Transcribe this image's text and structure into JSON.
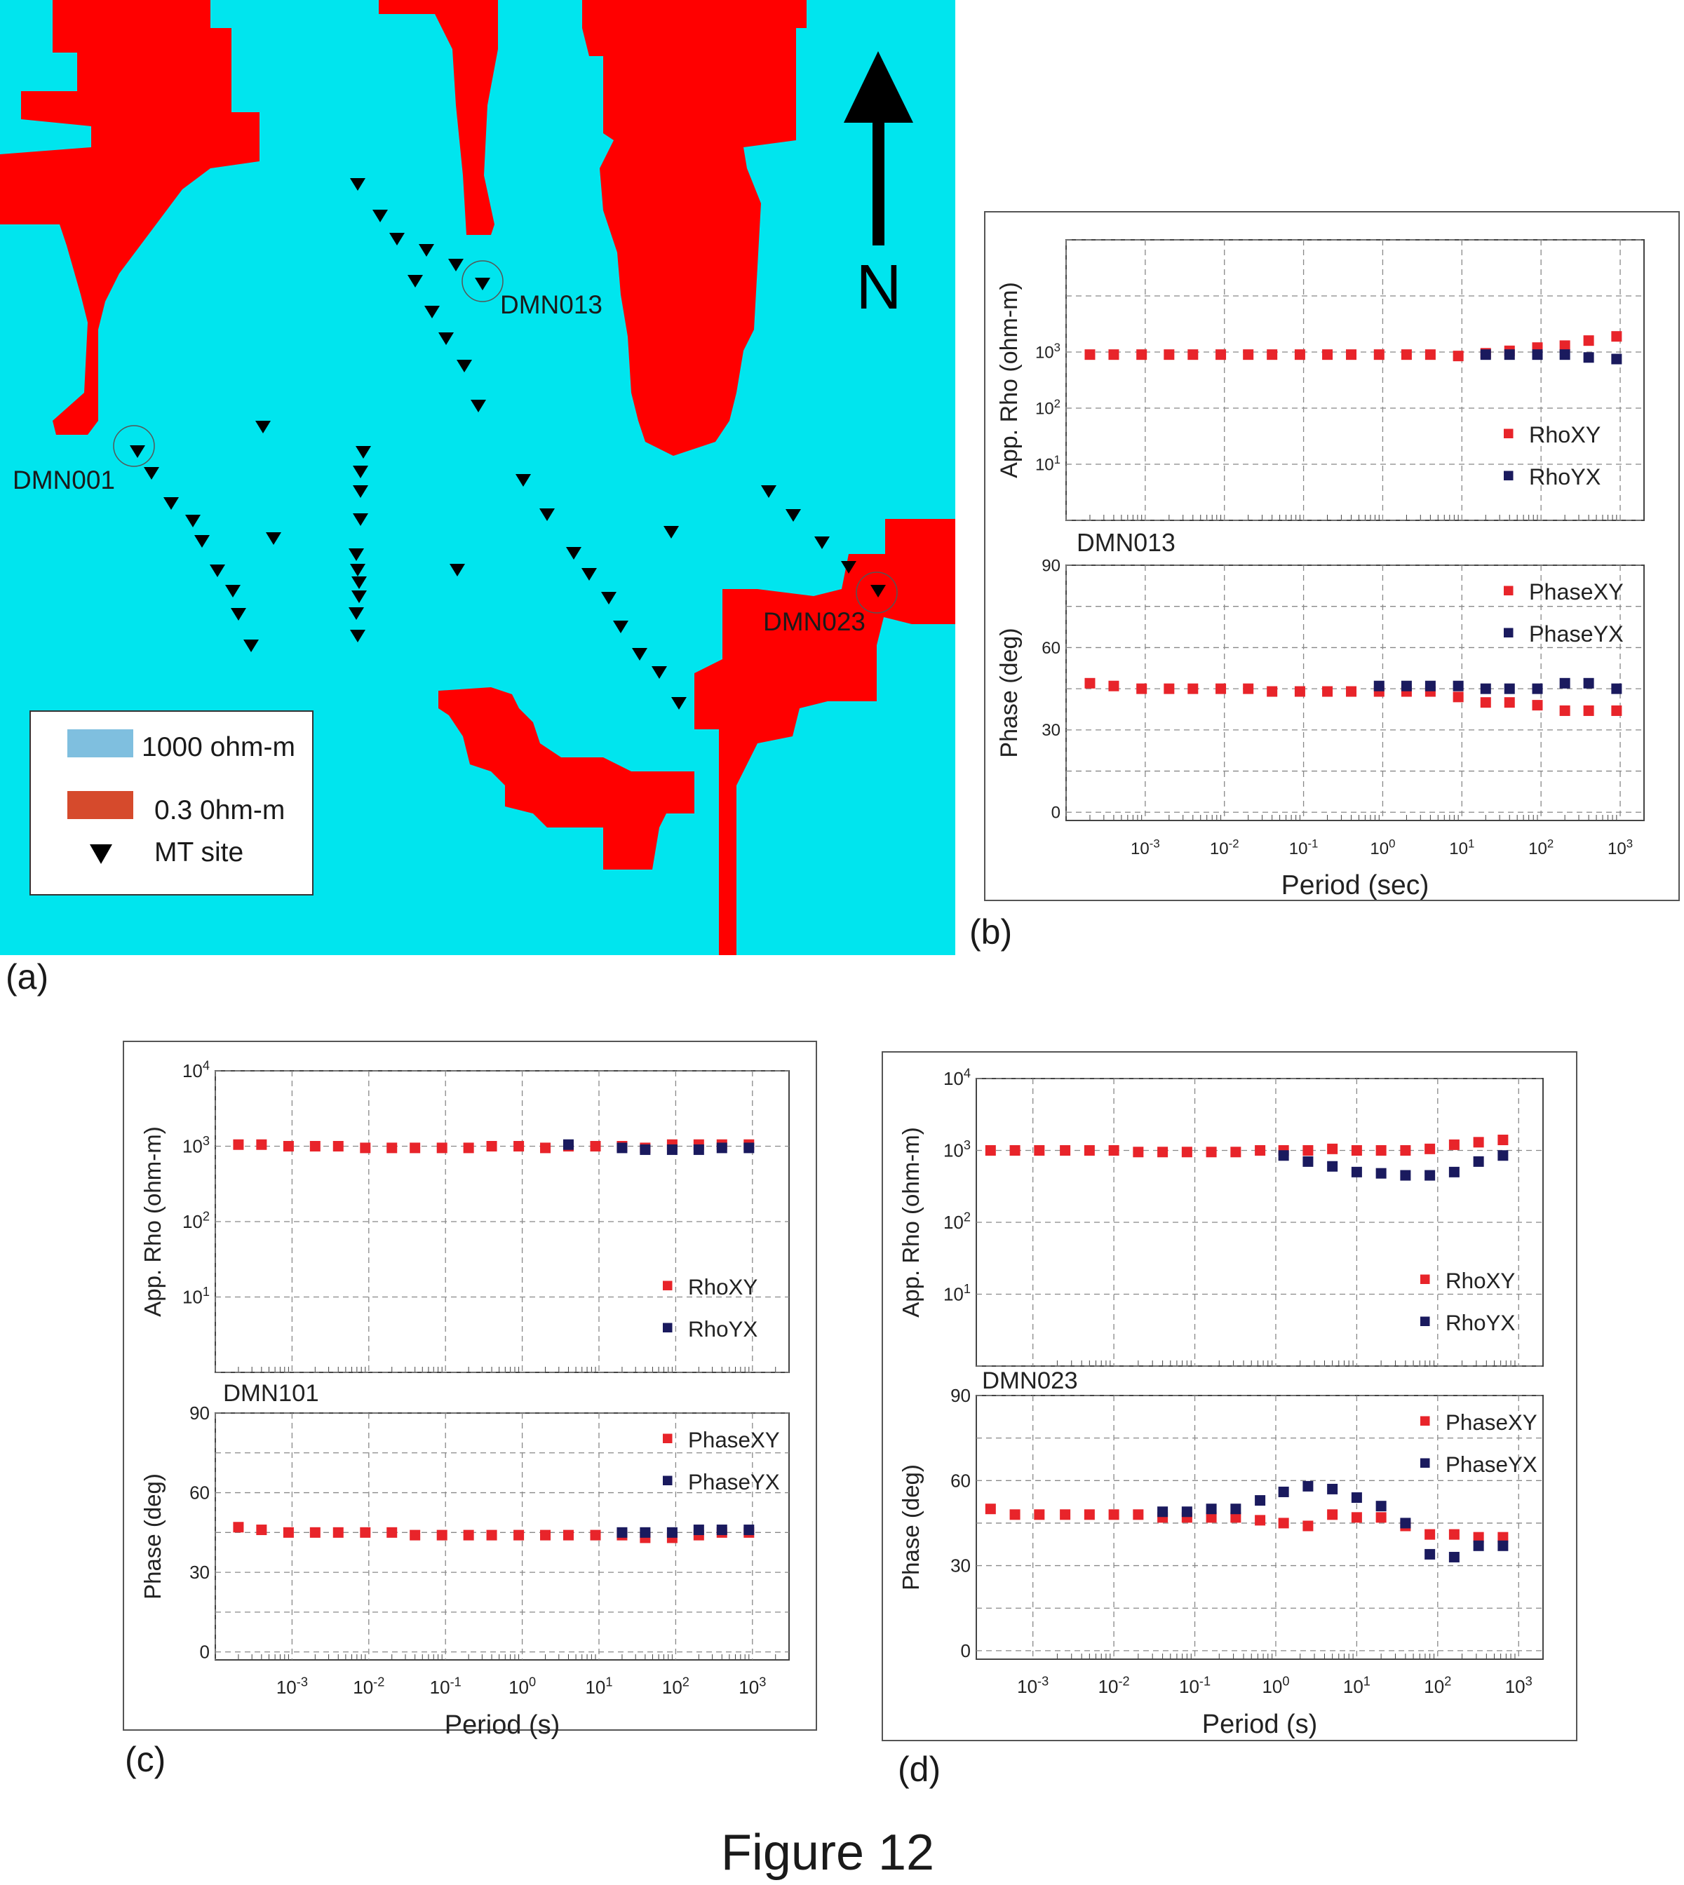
{
  "figure_caption": "Figure 12",
  "panels": {
    "a": {
      "label": "(a)",
      "north_label": "N",
      "background_color": "#00e5ee",
      "conductor_color": "#ff0000",
      "site_color": "#000000",
      "legend": {
        "resistive_swatch_color": "#7fbfdf",
        "resistive_label": "1000 ohm-m",
        "conductive_swatch_color": "#d64a2c",
        "conductive_label": "0.3 0hm-m",
        "site_label": "MT site"
      },
      "highlighted_sites": [
        {
          "name": "DMN001"
        },
        {
          "name": "DMN013"
        },
        {
          "name": "DMN023"
        }
      ]
    },
    "b": {
      "label": "(b)"
    },
    "c": {
      "label": "(c)"
    },
    "d": {
      "label": "(d)"
    }
  },
  "chart_data": [
    {
      "panel": "b",
      "type": "scatter",
      "site": "DMN013",
      "x_scale": "log",
      "xlabel": "Period (sec)",
      "xlim": [
        0.0001,
        2000
      ],
      "x_tick_labels": [
        "10-3",
        "10-2",
        "10-1",
        "100",
        "101",
        "102",
        "103"
      ],
      "top": {
        "ylabel": "App. Rho (ohm-m)",
        "y_scale": "log",
        "ylim": [
          1,
          100000
        ],
        "y_tick_labels": [
          "101",
          "102",
          "103"
        ],
        "legend_position": "bottom-right",
        "series": [
          {
            "name": "RhoXY",
            "color": "#e8242a",
            "x": [
              0.0002,
              0.0004,
              0.0009,
              0.002,
              0.004,
              0.009,
              0.02,
              0.04,
              0.09,
              0.2,
              0.4,
              0.9,
              2,
              4,
              9,
              20,
              40,
              90,
              200,
              400,
              900
            ],
            "y": [
              900,
              900,
              900,
              900,
              900,
              900,
              900,
              900,
              900,
              900,
              900,
              900,
              900,
              900,
              850,
              950,
              1050,
              1200,
              1300,
              1600,
              1900
            ]
          },
          {
            "name": "RhoYX",
            "color": "#1a1a5e",
            "x": [
              20,
              40,
              90,
              200,
              400,
              900
            ],
            "y": [
              900,
              900,
              900,
              900,
              800,
              750
            ]
          }
        ]
      },
      "bottom": {
        "ylabel": "Phase (deg)",
        "ylim": [
          -3,
          90
        ],
        "y_tick_labels": [
          "0",
          "30",
          "60",
          "90"
        ],
        "legend_position": "top-right",
        "series": [
          {
            "name": "PhaseXY",
            "color": "#e8242a",
            "x": [
              0.0002,
              0.0004,
              0.0009,
              0.002,
              0.004,
              0.009,
              0.02,
              0.04,
              0.09,
              0.2,
              0.4,
              0.9,
              2,
              4,
              9,
              20,
              40,
              90,
              200,
              400,
              900
            ],
            "y": [
              47,
              46,
              45,
              45,
              45,
              45,
              45,
              44,
              44,
              44,
              44,
              44,
              44,
              44,
              42,
              40,
              40,
              39,
              37,
              37,
              37
            ]
          },
          {
            "name": "PhaseYX",
            "color": "#1a1a5e",
            "x": [
              0.9,
              2,
              4,
              9,
              20,
              40,
              90,
              200,
              400,
              900
            ],
            "y": [
              46,
              46,
              46,
              46,
              45,
              45,
              45,
              47,
              47,
              45
            ]
          }
        ]
      }
    },
    {
      "panel": "c",
      "type": "scatter",
      "site": "DMN101",
      "x_scale": "log",
      "xlabel": "Period (s)",
      "xlim": [
        0.0001,
        3000
      ],
      "x_tick_labels": [
        "10-3",
        "10-2",
        "10-1",
        "100",
        "101",
        "102",
        "103"
      ],
      "top": {
        "ylabel": "App. Rho (ohm-m)",
        "y_scale": "log",
        "ylim": [
          1,
          10000
        ],
        "y_tick_labels": [
          "101",
          "102",
          "103",
          "104"
        ],
        "legend_position": "bottom-right",
        "series": [
          {
            "name": "RhoXY",
            "color": "#e8242a",
            "x": [
              0.0002,
              0.0004,
              0.0009,
              0.002,
              0.004,
              0.009,
              0.02,
              0.04,
              0.09,
              0.2,
              0.4,
              0.9,
              2,
              4,
              9,
              20,
              40,
              90,
              200,
              400,
              900
            ],
            "y": [
              1050,
              1050,
              1000,
              1000,
              1000,
              950,
              950,
              950,
              950,
              950,
              1000,
              1000,
              950,
              1000,
              1000,
              1000,
              950,
              1050,
              1050,
              1050,
              1050
            ]
          },
          {
            "name": "RhoYX",
            "color": "#1a1a5e",
            "x": [
              4,
              20,
              40,
              90,
              200,
              400,
              900
            ],
            "y": [
              1050,
              950,
              900,
              900,
              900,
              950,
              950
            ]
          }
        ]
      },
      "bottom": {
        "ylabel": "Phase (deg)",
        "ylim": [
          -3,
          90
        ],
        "y_tick_labels": [
          "0",
          "30",
          "60",
          "90"
        ],
        "legend_position": "top-right",
        "series": [
          {
            "name": "PhaseXY",
            "color": "#e8242a",
            "x": [
              0.0002,
              0.0004,
              0.0009,
              0.002,
              0.004,
              0.009,
              0.02,
              0.04,
              0.09,
              0.2,
              0.4,
              0.9,
              2,
              4,
              9,
              20,
              40,
              90,
              200,
              400,
              900
            ],
            "y": [
              47,
              46,
              45,
              45,
              45,
              45,
              45,
              44,
              44,
              44,
              44,
              44,
              44,
              44,
              44,
              44,
              43,
              43,
              44,
              45,
              45
            ]
          },
          {
            "name": "PhaseYX",
            "color": "#1a1a5e",
            "x": [
              20,
              40,
              90,
              200,
              400,
              900
            ],
            "y": [
              45,
              45,
              45,
              46,
              46,
              46
            ]
          }
        ]
      }
    },
    {
      "panel": "d",
      "type": "scatter",
      "site": "DMN023",
      "x_scale": "log",
      "xlabel": "Period (s)",
      "xlim": [
        0.0002,
        2000
      ],
      "x_tick_labels": [
        "10-3",
        "10-2",
        "10-1",
        "100",
        "101",
        "102",
        "103"
      ],
      "top": {
        "ylabel": "App. Rho (ohm-m)",
        "y_scale": "log",
        "ylim": [
          1,
          10000
        ],
        "y_tick_labels": [
          "101",
          "102",
          "103",
          "104"
        ],
        "legend_position": "bottom-right",
        "series": [
          {
            "name": "RhoXY",
            "color": "#e8242a",
            "x": [
              0.0003,
              0.0006,
              0.0012,
              0.0025,
              0.005,
              0.01,
              0.02,
              0.04,
              0.08,
              0.16,
              0.32,
              0.64,
              1.25,
              2.5,
              5,
              10,
              20,
              40,
              80,
              160,
              320,
              640
            ],
            "y": [
              1000,
              1000,
              1000,
              1000,
              1000,
              1000,
              950,
              950,
              950,
              950,
              950,
              1000,
              1000,
              1000,
              1050,
              1000,
              1000,
              1000,
              1050,
              1200,
              1300,
              1400
            ]
          },
          {
            "name": "RhoYX",
            "color": "#1a1a5e",
            "x": [
              1.25,
              2.5,
              5,
              10,
              20,
              40,
              80,
              160,
              320,
              640
            ],
            "y": [
              850,
              700,
              600,
              500,
              480,
              450,
              450,
              500,
              700,
              850
            ]
          }
        ]
      },
      "bottom": {
        "ylabel": "Phase (deg)",
        "ylim": [
          -3,
          90
        ],
        "y_tick_labels": [
          "0",
          "30",
          "60",
          "90"
        ],
        "legend_position": "top-right",
        "series": [
          {
            "name": "PhaseXY",
            "color": "#e8242a",
            "x": [
              0.0003,
              0.0006,
              0.0012,
              0.0025,
              0.005,
              0.01,
              0.02,
              0.04,
              0.08,
              0.16,
              0.32,
              0.64,
              1.25,
              2.5,
              5,
              10,
              20,
              40,
              80,
              160,
              320,
              640
            ],
            "y": [
              50,
              48,
              48,
              48,
              48,
              48,
              48,
              47,
              47,
              47,
              47,
              46,
              45,
              44,
              48,
              47,
              47,
              44,
              41,
              41,
              40,
              40
            ]
          },
          {
            "name": "PhaseYX",
            "color": "#1a1a5e",
            "x": [
              0.04,
              0.08,
              0.16,
              0.32,
              0.64,
              1.25,
              2.5,
              5,
              10,
              20,
              40,
              80,
              160,
              320,
              640
            ],
            "y": [
              49,
              49,
              50,
              50,
              53,
              56,
              58,
              57,
              54,
              51,
              45,
              34,
              33,
              37,
              37
            ]
          }
        ]
      }
    }
  ]
}
